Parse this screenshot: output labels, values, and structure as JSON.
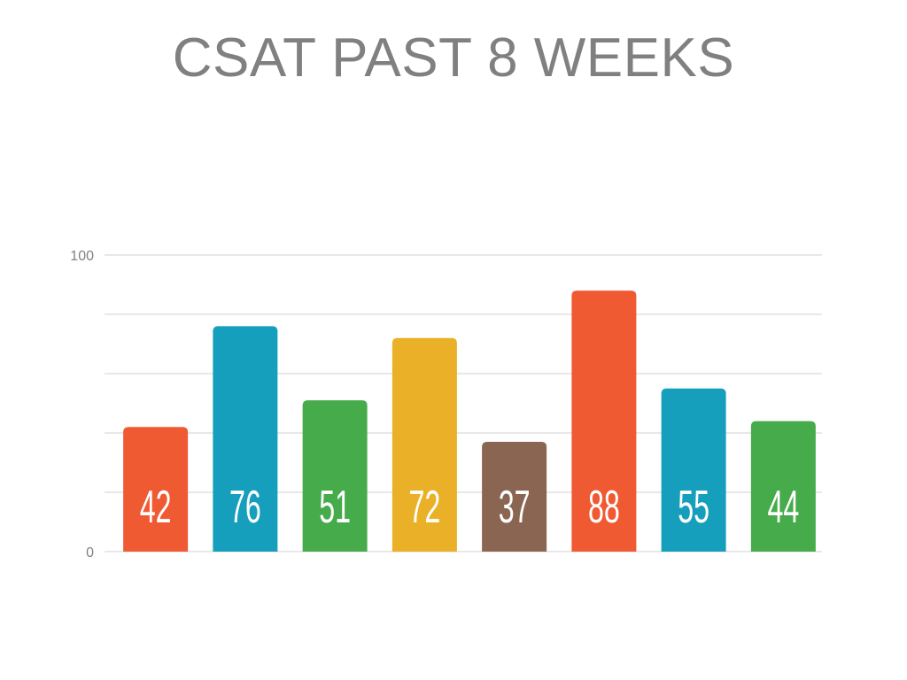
{
  "chart_data": {
    "type": "bar",
    "title": "CSAT PAST 8 WEEKS",
    "xlabel": "",
    "ylabel": "",
    "ylim": [
      0,
      100
    ],
    "y_tick_labels": [
      "0",
      "100"
    ],
    "grid": true,
    "values": [
      42,
      76,
      51,
      72,
      37,
      88,
      55,
      44
    ],
    "data_labels": [
      "42",
      "76",
      "51",
      "72",
      "37",
      "88",
      "55",
      "44"
    ],
    "colors": [
      "#F05A33",
      "#169FBD",
      "#46AB4B",
      "#EAB027",
      "#8A6552",
      "#F05A33",
      "#169FBD",
      "#46AB4B"
    ]
  }
}
